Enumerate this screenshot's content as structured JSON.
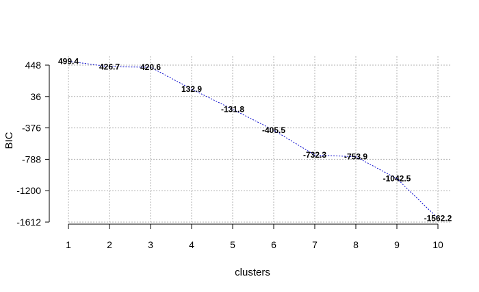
{
  "chart_data": {
    "type": "line",
    "xlabel": "clusters",
    "ylabel": "BIC",
    "x": [
      1,
      2,
      3,
      4,
      5,
      6,
      7,
      8,
      9,
      10
    ],
    "series": [
      {
        "values": [
          499.4,
          426.7,
          420.6,
          132.9,
          -131.8,
          -405.5,
          -732.3,
          -753.9,
          -1042.5,
          -1562.2
        ]
      }
    ],
    "data_labels": [
      "499.4",
      "426.7",
      "420.6",
      "132.9",
      "-131.8",
      "-405.5",
      "-732.3",
      "-753.9",
      "-1042.5",
      "-1562.2"
    ],
    "x_ticks": [
      "1",
      "2",
      "3",
      "4",
      "5",
      "6",
      "7",
      "8",
      "9",
      "10"
    ],
    "y_tick_values": [
      448,
      36,
      -376,
      -788,
      -1200,
      -1612
    ],
    "y_ticks": [
      "448",
      "36",
      "-376",
      "-788",
      "-1200",
      "-1612"
    ],
    "xlim": [
      1,
      10
    ],
    "ylim": [
      -1612,
      448
    ],
    "grid": true,
    "line_style": "dotted",
    "line_color": "#0000cc"
  }
}
